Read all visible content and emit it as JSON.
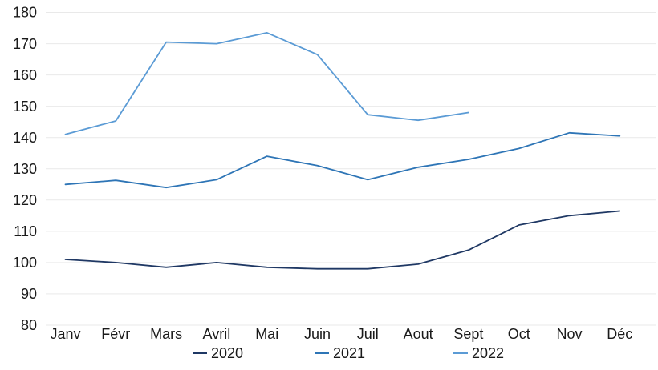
{
  "chart_data": {
    "type": "line",
    "title": "",
    "xlabel": "",
    "ylabel": "",
    "categories": [
      "Janv",
      "Févr",
      "Mars",
      "Avril",
      "Mai",
      "Juin",
      "Juil",
      "Aout",
      "Sept",
      "Oct",
      "Nov",
      "Déc"
    ],
    "series": [
      {
        "name": "2020",
        "color": "#1F3864",
        "values": [
          101,
          100,
          98.5,
          100,
          98.5,
          98,
          98,
          99.5,
          104,
          112,
          115,
          116.5
        ]
      },
      {
        "name": "2021",
        "color": "#2E75B6",
        "values": [
          125,
          126.3,
          124,
          126.5,
          134,
          131,
          126.5,
          130.5,
          133,
          136.5,
          141.5,
          140.5
        ]
      },
      {
        "name": "2022",
        "color": "#5B9BD5",
        "values": [
          141,
          145.3,
          170.5,
          170,
          173.5,
          166.5,
          147.3,
          145.5,
          148
        ]
      }
    ],
    "y_axis": {
      "min": 80,
      "max": 180,
      "step": 10,
      "tick_labels": [
        "180",
        "170",
        "160",
        "150",
        "140",
        "130",
        "120",
        "110",
        "100",
        "90",
        "80"
      ]
    },
    "grid": true,
    "legend_position": "bottom",
    "colors": {
      "background": "#FFFFFF",
      "gridline": "#E9E9E9",
      "axis_text": "#1a1a1a"
    }
  }
}
